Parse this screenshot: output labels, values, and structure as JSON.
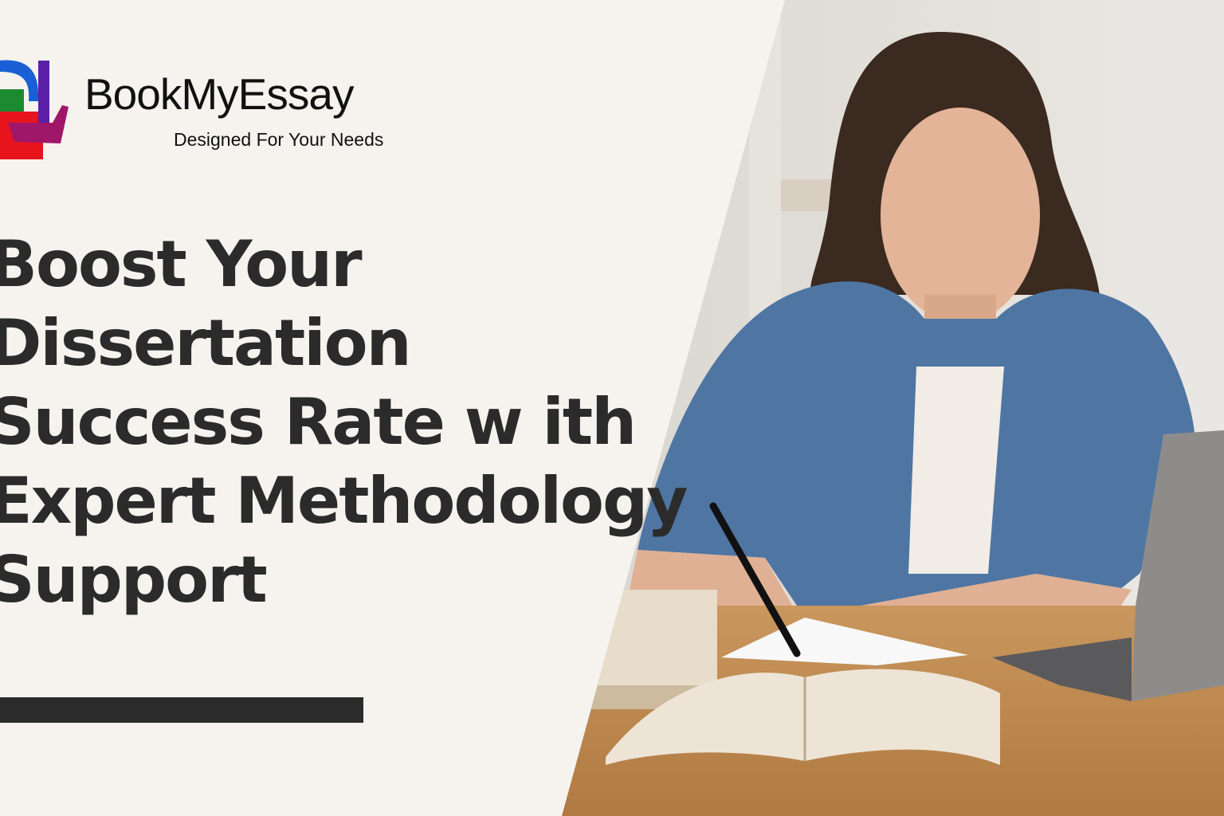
{
  "brand": {
    "name": "BookMyEssay",
    "tagline": "Designed For Your Needs",
    "logo_colors": [
      "#1a5fd6",
      "#1c8a2e",
      "#e8141c",
      "#5b1fa8",
      "#a0176a"
    ]
  },
  "headline": {
    "lines": [
      "Boost Your",
      "Dissertation",
      "Success Rate w ith",
      "Expert Methodology",
      "Support"
    ]
  },
  "colors": {
    "background": "#f6f3ef",
    "text": "#2b2b2b",
    "accent_bar": "#2b2b2b"
  }
}
